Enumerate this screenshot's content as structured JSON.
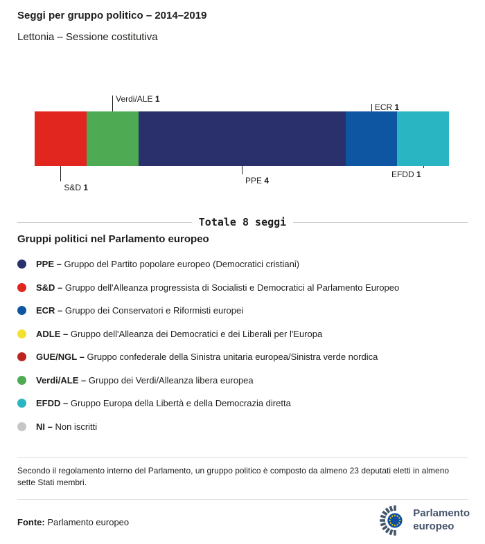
{
  "chart_data": {
    "type": "bar",
    "variant": "horizontal-stacked",
    "title": "Seggi per gruppo politico – 2014–2019",
    "subtitle": "Lettonia – Sessione costitutiva",
    "total_seats": 8,
    "total_label": "Totale 8 seggi",
    "segments": [
      {
        "group": "S&D",
        "seats": 1,
        "color": "#e1251f",
        "callout": "below"
      },
      {
        "group": "Verdi/ALE",
        "seats": 1,
        "color": "#4faa54",
        "callout": "above"
      },
      {
        "group": "PPE",
        "seats": 4,
        "color": "#29306b",
        "callout": "below"
      },
      {
        "group": "ECR",
        "seats": 1,
        "color": "#0e56a1",
        "callout": "above"
      },
      {
        "group": "EFDD",
        "seats": 1,
        "color": "#2ab5c3",
        "callout": "below"
      }
    ]
  },
  "legend": {
    "heading": "Gruppi politici nel Parlamento europeo",
    "items": [
      {
        "abbr": "PPE",
        "color": "#29306b",
        "description": "Gruppo del Partito popolare europeo (Democratici cristiani)"
      },
      {
        "abbr": "S&D",
        "color": "#e1251f",
        "description": "Gruppo dell'Alleanza progressista di Socialisti e Democratici al Parlamento Europeo"
      },
      {
        "abbr": "ECR",
        "color": "#0e56a1",
        "description": "Gruppo dei Conservatori e Riformisti europei"
      },
      {
        "abbr": "ADLE",
        "color": "#f2e22e",
        "description": "Gruppo dell'Alleanza dei Democratici e dei Liberali per l'Europa"
      },
      {
        "abbr": "GUE/NGL",
        "color": "#bc2420",
        "description": "Gruppo confederale della Sinistra unitaria europea/Sinistra verde nordica"
      },
      {
        "abbr": "Verdi/ALE",
        "color": "#4faa54",
        "description": "Gruppo dei Verdi/Alleanza libera europea"
      },
      {
        "abbr": "EFDD",
        "color": "#2ab5c3",
        "description": "Gruppo Europa della Libertà e della Democrazia diretta"
      },
      {
        "abbr": "NI",
        "color": "#c6c6c6",
        "description": "Non iscritti"
      }
    ]
  },
  "footnote": "Secondo il regolamento interno del Parlamento, un gruppo politico è composto da almeno 23 deputati eletti in almeno sette Stati membri.",
  "source": {
    "label": "Fonte:",
    "value": "Parlamento europeo"
  },
  "logo": {
    "line1": "Parlamento",
    "line2": "europeo"
  }
}
